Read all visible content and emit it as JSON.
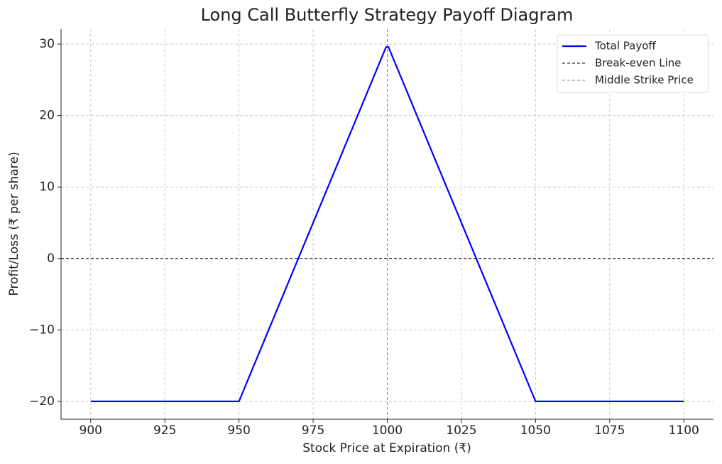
{
  "chart_data": {
    "type": "line",
    "title": "Long Call Butterfly Strategy Payoff Diagram",
    "x_label": "Stock Price at Expiration (₹)",
    "y_label": "Profit/Loss (₹ per share)",
    "x": [
      900,
      950,
      999.6,
      1000.4,
      1050,
      1100
    ],
    "series": [
      {
        "name": "Total Payoff",
        "color": "#0000ff",
        "values": [
          -20,
          -20,
          29.6,
          29.6,
          -20,
          -20
        ]
      }
    ],
    "hlines": [
      {
        "name": "Break-even Line",
        "value": 0,
        "color": "#000000"
      }
    ],
    "vlines": [
      {
        "name": "Middle Strike Price",
        "value": 1000,
        "color": "#808080"
      }
    ],
    "xlim": [
      890,
      1110
    ],
    "ylim": [
      -22.5,
      32.1
    ],
    "xticks": [
      900,
      925,
      950,
      975,
      1000,
      1025,
      1050,
      1075,
      1100
    ],
    "yticks": [
      {
        "value": -20,
        "label": "−20"
      },
      {
        "value": -10,
        "label": "−10"
      },
      0,
      10,
      20,
      30
    ],
    "grid": true,
    "legend": "upper right"
  }
}
